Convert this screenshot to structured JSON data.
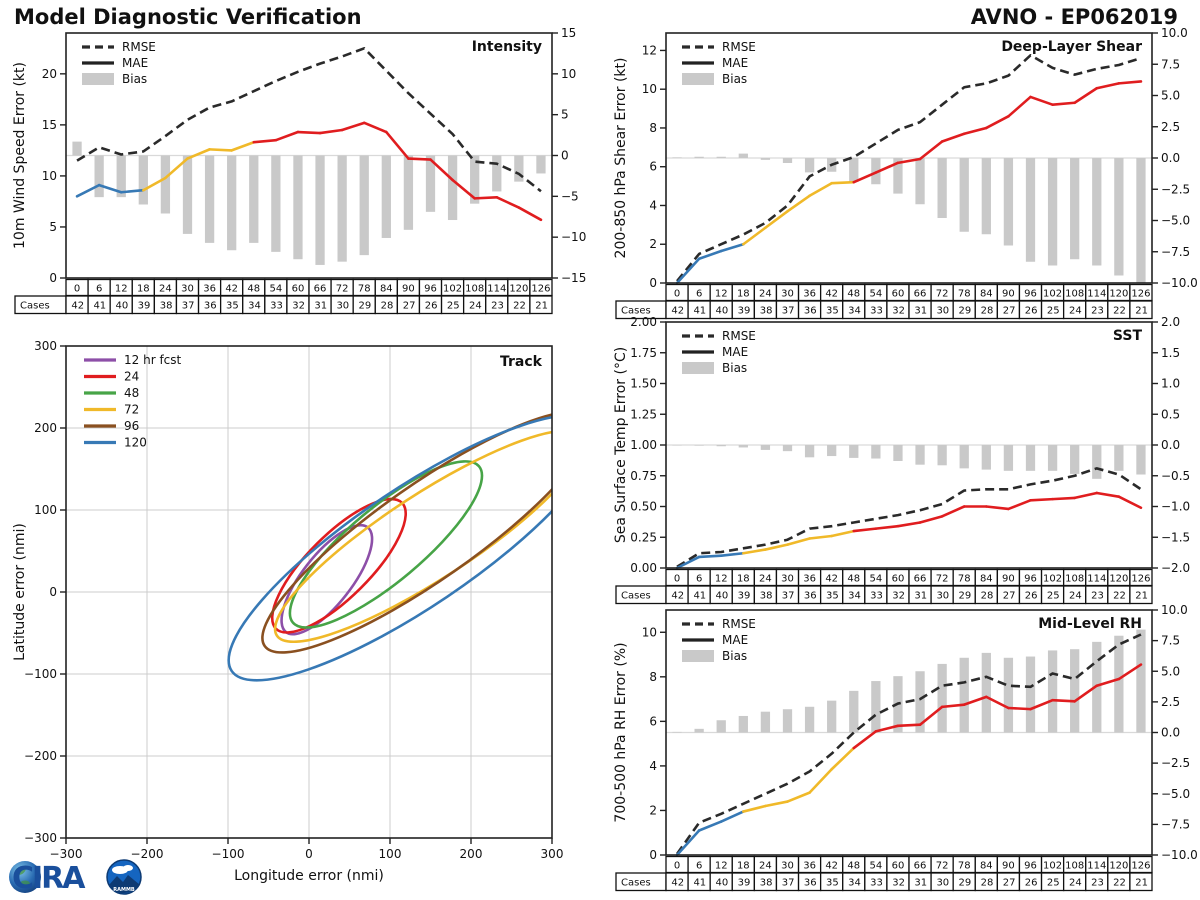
{
  "header": {
    "title": "Model Diagnostic Verification",
    "model_storm": "AVNO - EP062019"
  },
  "logo": {
    "cira": "CIRA",
    "rammb": "RAMMB"
  },
  "colors": {
    "rmse": "#2a2a2a",
    "mae_black": "#222222",
    "bias_bar": "#c9c9c9",
    "zero_line": "#d9d9d9",
    "mae_segments": [
      {
        "until": 18,
        "color": "#3779b5"
      },
      {
        "until": 48,
        "color": "#f0b929"
      },
      {
        "until": 126,
        "color": "#e01d1f"
      }
    ]
  },
  "chart_data": {
    "type": "line",
    "hours": [
      0,
      6,
      12,
      18,
      24,
      30,
      36,
      42,
      48,
      54,
      60,
      66,
      72,
      78,
      84,
      90,
      96,
      102,
      108,
      114,
      120,
      126
    ],
    "cases": [
      42,
      41,
      40,
      39,
      38,
      37,
      36,
      35,
      34,
      33,
      32,
      31,
      30,
      29,
      28,
      27,
      26,
      25,
      24,
      23,
      22,
      21
    ],
    "cases_label": "Cases",
    "legend": [
      "RMSE",
      "MAE",
      "Bias"
    ],
    "panels": [
      {
        "id": "intensity",
        "label": "Intensity",
        "ylabel": "10m Wind Speed Error (kt)",
        "left_axis": {
          "min": 0,
          "max": 24,
          "ticks": [
            0,
            5,
            10,
            15,
            20
          ],
          "decimals": 0
        },
        "right_axis": {
          "min": -15,
          "max": 15,
          "ticks": [
            -15,
            -10,
            -5,
            0,
            5,
            10,
            15
          ],
          "decimals": 0
        },
        "rmse": [
          11.5,
          12.8,
          12.1,
          12.4,
          13.9,
          15.5,
          16.7,
          17.3,
          18.3,
          19.3,
          20.2,
          21.0,
          21.7,
          22.5,
          20.3,
          18.1,
          16.1,
          14.1,
          11.4,
          11.2,
          10.2,
          8.5
        ],
        "mae": [
          8.0,
          9.1,
          8.4,
          8.6,
          9.8,
          11.7,
          12.6,
          12.5,
          13.3,
          13.5,
          14.3,
          14.2,
          14.5,
          15.2,
          14.3,
          11.7,
          11.6,
          9.6,
          7.8,
          7.9,
          6.9,
          5.7
        ],
        "bias": [
          1.7,
          -5.1,
          -5.1,
          -6.0,
          -7.1,
          -9.6,
          -10.7,
          -11.6,
          -10.7,
          -11.8,
          -12.7,
          -13.4,
          -13.0,
          -12.2,
          -10.1,
          -9.1,
          -6.9,
          -7.9,
          -5.9,
          -4.4,
          -3.2,
          -2.2
        ]
      },
      {
        "id": "shear",
        "label": "Deep-Layer Shear",
        "ylabel": "200-850 hPa Shear Error (kt)",
        "left_axis": {
          "min": 0,
          "max": 12.9,
          "ticks": [
            0,
            2,
            4,
            6,
            8,
            10,
            12
          ],
          "decimals": 0
        },
        "right_axis": {
          "min": -10,
          "max": 10,
          "ticks": [
            -10,
            -7.5,
            -5,
            -2.5,
            0,
            2.5,
            5,
            7.5,
            10
          ],
          "decimals": 1
        },
        "rmse": [
          0.1,
          1.5,
          2.0,
          2.5,
          3.1,
          4.0,
          5.5,
          6.1,
          6.5,
          7.2,
          7.9,
          8.3,
          9.2,
          10.1,
          10.3,
          10.7,
          11.75,
          11.1,
          10.75,
          11.05,
          11.25,
          11.6
        ],
        "mae": [
          0.0,
          1.25,
          1.65,
          2.0,
          2.85,
          3.7,
          4.5,
          5.15,
          5.2,
          5.7,
          6.2,
          6.4,
          7.3,
          7.7,
          8.0,
          8.6,
          9.6,
          9.2,
          9.3,
          10.05,
          10.3,
          10.4
        ],
        "bias": [
          0.05,
          0.1,
          0.1,
          0.35,
          -0.15,
          -0.4,
          -1.15,
          -1.1,
          -1.9,
          -2.1,
          -2.85,
          -3.7,
          -4.8,
          -5.9,
          -6.1,
          -7.0,
          -8.3,
          -8.6,
          -8.1,
          -8.6,
          -9.4,
          -10.0
        ]
      },
      {
        "id": "sst",
        "label": "SST",
        "ylabel": "Sea Surface Temp Error (°C)",
        "left_axis": {
          "min": 0,
          "max": 2,
          "ticks": [
            0,
            0.25,
            0.5,
            0.75,
            1.0,
            1.25,
            1.5,
            1.75,
            2.0
          ],
          "decimals": 2
        },
        "right_axis": {
          "min": -2,
          "max": 2,
          "ticks": [
            -2,
            -1.5,
            -1,
            -0.5,
            0,
            0.5,
            1,
            1.5,
            2
          ],
          "decimals": 1
        },
        "rmse": [
          0.01,
          0.12,
          0.13,
          0.16,
          0.19,
          0.23,
          0.32,
          0.34,
          0.37,
          0.4,
          0.43,
          0.47,
          0.52,
          0.63,
          0.64,
          0.64,
          0.68,
          0.71,
          0.75,
          0.81,
          0.76,
          0.64
        ],
        "mae": [
          0.0,
          0.09,
          0.1,
          0.12,
          0.15,
          0.19,
          0.24,
          0.26,
          0.3,
          0.32,
          0.34,
          0.37,
          0.42,
          0.5,
          0.5,
          0.48,
          0.55,
          0.56,
          0.57,
          0.61,
          0.58,
          0.49
        ],
        "bias": [
          0.0,
          -0.01,
          -0.02,
          -0.04,
          -0.08,
          -0.1,
          -0.2,
          -0.18,
          -0.21,
          -0.22,
          -0.26,
          -0.32,
          -0.33,
          -0.38,
          -0.4,
          -0.42,
          -0.42,
          -0.42,
          -0.47,
          -0.55,
          -0.42,
          -0.48
        ]
      },
      {
        "id": "rh",
        "label": "Mid-Level RH",
        "ylabel": "700-500 hPa RH Error (%)",
        "left_axis": {
          "min": 0,
          "max": 11,
          "ticks": [
            0,
            2,
            4,
            6,
            8,
            10
          ],
          "decimals": 0
        },
        "right_axis": {
          "min": -10,
          "max": 10,
          "ticks": [
            -10,
            -7.5,
            -5,
            -2.5,
            0,
            2.5,
            5,
            7.5,
            10
          ],
          "decimals": 1
        },
        "rmse": [
          0.05,
          1.45,
          1.85,
          2.3,
          2.75,
          3.2,
          3.75,
          4.55,
          5.5,
          6.3,
          6.8,
          7.0,
          7.6,
          7.75,
          8.0,
          7.6,
          7.55,
          8.15,
          7.9,
          8.7,
          9.45,
          9.9
        ],
        "mae": [
          0.0,
          1.1,
          1.5,
          1.95,
          2.2,
          2.4,
          2.8,
          3.85,
          4.8,
          5.55,
          5.8,
          5.85,
          6.65,
          6.75,
          7.1,
          6.6,
          6.55,
          6.95,
          6.9,
          7.6,
          7.9,
          8.55
        ],
        "bias": [
          0.05,
          0.3,
          1.0,
          1.35,
          1.7,
          1.9,
          2.1,
          2.6,
          3.4,
          4.2,
          4.6,
          5.0,
          5.6,
          6.1,
          6.5,
          6.1,
          6.2,
          6.7,
          6.8,
          7.4,
          7.9,
          8.4
        ]
      }
    ],
    "track": {
      "label": "Track",
      "xlabel": "Longitude error (nmi)",
      "ylabel": "Latitude error (nmi)",
      "xlim": [
        -300,
        300
      ],
      "ylim": [
        -300,
        300
      ],
      "ticks": [
        -300,
        -200,
        -100,
        0,
        100,
        200,
        300
      ],
      "ellipses": [
        {
          "name": "12 hr fcst",
          "color": "#8d4fa8",
          "cx": 22,
          "cy": 15,
          "a": 82,
          "b": 30,
          "angle": 52
        },
        {
          "name": "24",
          "color": "#e01d1f",
          "cx": 37,
          "cy": 32,
          "a": 110,
          "b": 38,
          "angle": 45
        },
        {
          "name": "48",
          "color": "#47a447",
          "cx": 95,
          "cy": 58,
          "a": 150,
          "b": 45,
          "angle": 40
        },
        {
          "name": "72",
          "color": "#f0b929",
          "cx": 149,
          "cy": 68,
          "a": 225,
          "b": 52,
          "angle": 33
        },
        {
          "name": "96",
          "color": "#8a5020",
          "cx": 146,
          "cy": 73,
          "a": 245,
          "b": 58,
          "angle": 35
        },
        {
          "name": "120",
          "color": "#3779b5",
          "cx": 130,
          "cy": 54,
          "a": 272,
          "b": 72,
          "angle": 34
        }
      ]
    }
  }
}
